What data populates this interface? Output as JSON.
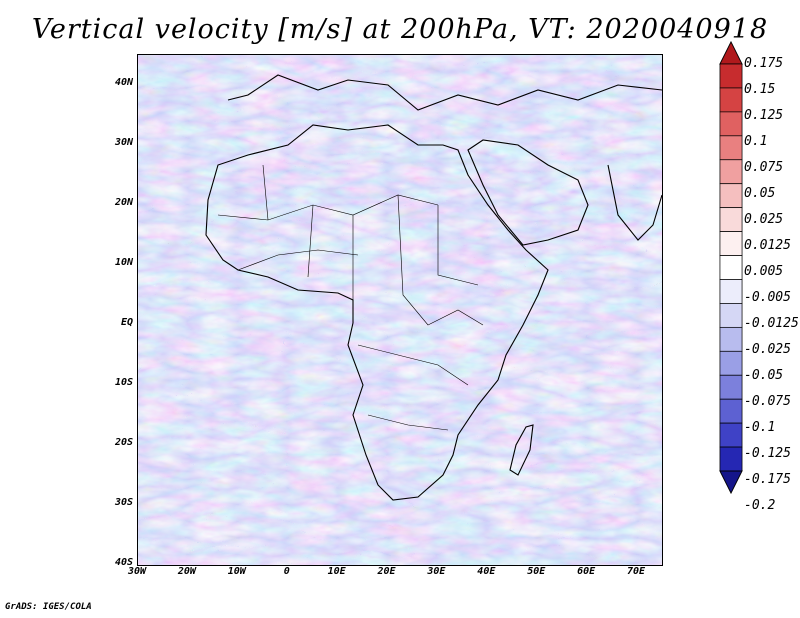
{
  "title": "Vertical velocity [m/s] at 200hPa, VT: 2020040918",
  "credit": "GrADS: IGES/COLA",
  "map": {
    "lat_labels": [
      "40N",
      "30N",
      "20N",
      "10N",
      "EQ",
      "10S",
      "20S",
      "30S",
      "40S"
    ],
    "lon_labels": [
      "30W",
      "20W",
      "10W",
      "0",
      "10E",
      "20E",
      "30E",
      "40E",
      "50E",
      "60E",
      "70E"
    ],
    "lat_range": [
      -40,
      45
    ],
    "lon_range": [
      -30,
      75
    ]
  },
  "colorbar": {
    "labels": [
      "0.175",
      "0.15",
      "0.125",
      "0.1",
      "0.075",
      "0.05",
      "0.025",
      "0.0125",
      "0.005",
      "-0.005",
      "-0.0125",
      "-0.025",
      "-0.05",
      "-0.075",
      "-0.1",
      "-0.125",
      "-0.175",
      "-0.2"
    ],
    "colors": [
      "#b0191c",
      "#c72c2e",
      "#d54343",
      "#e06161",
      "#e98080",
      "#f0a0a0",
      "#f5bfbf",
      "#f9dada",
      "#fdf0f0",
      "#ffffff",
      "#ecedfb",
      "#d5d7f5",
      "#b8bcee",
      "#9a9fe6",
      "#7c80dc",
      "#5d61d2",
      "#3f42c6",
      "#2527b3",
      "#15158a"
    ]
  }
}
